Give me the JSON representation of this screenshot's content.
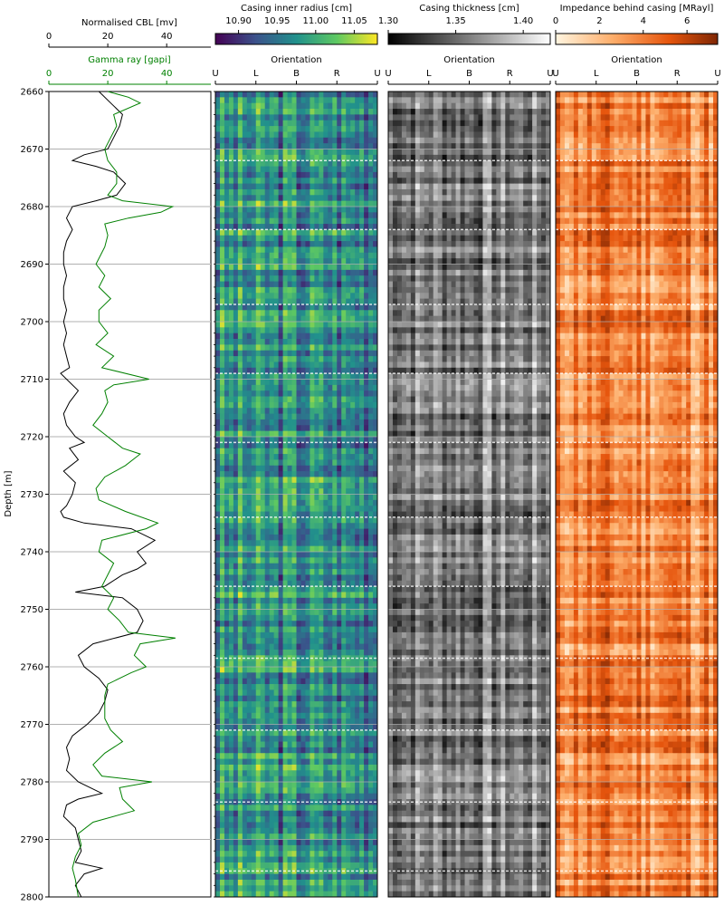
{
  "chart_data": [
    {
      "type": "line",
      "ylabel": "Depth [m]",
      "ylim": [
        2660,
        2800
      ],
      "yticks": [
        "2660",
        "2670",
        "2680",
        "2690",
        "2700",
        "2710",
        "2720",
        "2730",
        "2740",
        "2750",
        "2760",
        "2770",
        "2780",
        "2790",
        "2800"
      ],
      "grid": true,
      "top_axis": {
        "label": "Normalised CBL [mv]",
        "range": [
          0,
          55
        ],
        "ticks": [
          "0",
          "20",
          "40"
        ]
      },
      "second_axis": {
        "label": "Gamma ray [gapi]",
        "range": [
          0,
          55
        ],
        "ticks": [
          "0",
          "20",
          "40"
        ],
        "color": "#008000"
      },
      "series": [
        {
          "name": "Normalised CBL [mv]",
          "color": "#000000",
          "points": [
            [
              2660,
              17
            ],
            [
              2662,
              21
            ],
            [
              2664,
              25
            ],
            [
              2666,
              24
            ],
            [
              2668,
              22
            ],
            [
              2670,
              20
            ],
            [
              2671,
              12
            ],
            [
              2672,
              8
            ],
            [
              2673,
              16
            ],
            [
              2674,
              22
            ],
            [
              2676,
              26
            ],
            [
              2678,
              23
            ],
            [
              2679,
              16
            ],
            [
              2680,
              8
            ],
            [
              2682,
              6
            ],
            [
              2684,
              8
            ],
            [
              2686,
              6
            ],
            [
              2688,
              5
            ],
            [
              2690,
              5
            ],
            [
              2692,
              6
            ],
            [
              2694,
              5
            ],
            [
              2696,
              5
            ],
            [
              2698,
              6
            ],
            [
              2700,
              5
            ],
            [
              2702,
              6
            ],
            [
              2704,
              5
            ],
            [
              2706,
              6
            ],
            [
              2708,
              7
            ],
            [
              2709,
              4
            ],
            [
              2710,
              6
            ],
            [
              2712,
              10
            ],
            [
              2714,
              7
            ],
            [
              2716,
              5
            ],
            [
              2718,
              6
            ],
            [
              2720,
              9
            ],
            [
              2721,
              12
            ],
            [
              2722,
              7
            ],
            [
              2724,
              10
            ],
            [
              2726,
              5
            ],
            [
              2728,
              9
            ],
            [
              2730,
              8
            ],
            [
              2732,
              6
            ],
            [
              2733,
              4
            ],
            [
              2734,
              5
            ],
            [
              2735,
              12
            ],
            [
              2736,
              28
            ],
            [
              2738,
              36
            ],
            [
              2740,
              30
            ],
            [
              2742,
              33
            ],
            [
              2743,
              30
            ],
            [
              2744,
              25
            ],
            [
              2746,
              19
            ],
            [
              2747,
              9
            ],
            [
              2748,
              25
            ],
            [
              2750,
              30
            ],
            [
              2752,
              32
            ],
            [
              2754,
              30
            ],
            [
              2756,
              15
            ],
            [
              2758,
              10
            ],
            [
              2760,
              12
            ],
            [
              2762,
              17
            ],
            [
              2764,
              20
            ],
            [
              2766,
              19
            ],
            [
              2768,
              17
            ],
            [
              2770,
              13
            ],
            [
              2772,
              8
            ],
            [
              2774,
              6
            ],
            [
              2776,
              7
            ],
            [
              2778,
              6
            ],
            [
              2780,
              10
            ],
            [
              2782,
              18
            ],
            [
              2783,
              10
            ],
            [
              2784,
              6
            ],
            [
              2786,
              5
            ],
            [
              2788,
              9
            ],
            [
              2790,
              10
            ],
            [
              2792,
              11
            ],
            [
              2794,
              9
            ],
            [
              2795,
              18
            ],
            [
              2796,
              12
            ],
            [
              2798,
              9
            ],
            [
              2800,
              11
            ]
          ]
        },
        {
          "name": "Gamma ray [gapi]",
          "color": "#008000",
          "points": [
            [
              2660,
              20
            ],
            [
              2661,
              27
            ],
            [
              2662,
              31
            ],
            [
              2664,
              22
            ],
            [
              2666,
              23
            ],
            [
              2668,
              21
            ],
            [
              2670,
              19
            ],
            [
              2672,
              20
            ],
            [
              2674,
              23
            ],
            [
              2676,
              23
            ],
            [
              2678,
              20
            ],
            [
              2679,
              25
            ],
            [
              2680,
              42
            ],
            [
              2681,
              38
            ],
            [
              2682,
              27
            ],
            [
              2683,
              19
            ],
            [
              2685,
              20
            ],
            [
              2687,
              19
            ],
            [
              2690,
              16
            ],
            [
              2692,
              19
            ],
            [
              2694,
              17
            ],
            [
              2696,
              21
            ],
            [
              2698,
              17
            ],
            [
              2700,
              17
            ],
            [
              2702,
              20
            ],
            [
              2704,
              16
            ],
            [
              2706,
              22
            ],
            [
              2708,
              18
            ],
            [
              2710,
              34
            ],
            [
              2711,
              22
            ],
            [
              2712,
              19
            ],
            [
              2714,
              20
            ],
            [
              2716,
              18
            ],
            [
              2718,
              15
            ],
            [
              2720,
              20
            ],
            [
              2722,
              25
            ],
            [
              2723,
              31
            ],
            [
              2725,
              26
            ],
            [
              2727,
              19
            ],
            [
              2729,
              16
            ],
            [
              2731,
              17
            ],
            [
              2733,
              26
            ],
            [
              2735,
              37
            ],
            [
              2736,
              33
            ],
            [
              2738,
              18
            ],
            [
              2740,
              17
            ],
            [
              2742,
              22
            ],
            [
              2744,
              20
            ],
            [
              2746,
              18
            ],
            [
              2748,
              22
            ],
            [
              2750,
              20
            ],
            [
              2752,
              24
            ],
            [
              2754,
              27
            ],
            [
              2755,
              43
            ],
            [
              2756,
              31
            ],
            [
              2758,
              29
            ],
            [
              2760,
              33
            ],
            [
              2761,
              28
            ],
            [
              2763,
              20
            ],
            [
              2765,
              19
            ],
            [
              2767,
              19
            ],
            [
              2769,
              19
            ],
            [
              2771,
              21
            ],
            [
              2773,
              25
            ],
            [
              2775,
              19
            ],
            [
              2777,
              15
            ],
            [
              2779,
              18
            ],
            [
              2780,
              35
            ],
            [
              2781,
              24
            ],
            [
              2783,
              25
            ],
            [
              2785,
              29
            ],
            [
              2787,
              15
            ],
            [
              2789,
              10
            ],
            [
              2791,
              11
            ],
            [
              2793,
              9
            ],
            [
              2795,
              8
            ],
            [
              2797,
              9
            ],
            [
              2800,
              10
            ]
          ]
        }
      ]
    },
    {
      "type": "heatmap",
      "title": "Casing inner radius [cm]",
      "xlabel": "Orientation",
      "xticks": [
        "U",
        "L",
        "B",
        "R",
        "U"
      ],
      "ylim": [
        2660,
        2800
      ],
      "colorbar": {
        "range": [
          10.87,
          11.08
        ],
        "ticks": [
          "10.90",
          "10.95",
          "11.00",
          "11.05"
        ],
        "colormap": "viridis"
      }
    },
    {
      "type": "heatmap",
      "title": "Casing thickness [cm]",
      "xlabel": "Orientation",
      "xticks": [
        "U",
        "L",
        "B",
        "R",
        "U"
      ],
      "ylim": [
        2660,
        2800
      ],
      "colorbar": {
        "range": [
          1.3,
          1.42
        ],
        "ticks": [
          "1.30",
          "1.35",
          "1.40"
        ],
        "colormap": "greys"
      }
    },
    {
      "type": "heatmap",
      "title": "Impedance behind casing [MRayl]",
      "xlabel": "Orientation",
      "xticks": [
        "U",
        "L",
        "B",
        "R",
        "U"
      ],
      "ylim": [
        2660,
        2800
      ],
      "colorbar": {
        "range": [
          0,
          7.4
        ],
        "ticks": [
          "0",
          "2",
          "4",
          "6"
        ],
        "colormap": "oranges"
      }
    }
  ]
}
